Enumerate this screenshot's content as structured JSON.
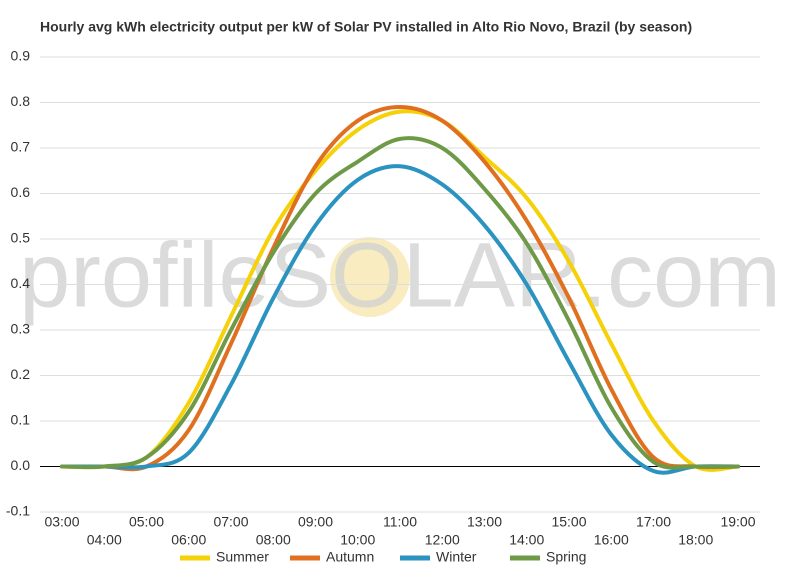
{
  "chart_data": {
    "type": "line",
    "title": "Hourly avg kWh electricity output per kW of Solar PV installed in Alto Rio Novo, Brazil (by season)",
    "watermark": "profileSOLAR.com",
    "categories": [
      "03:00",
      "04:00",
      "05:00",
      "06:00",
      "07:00",
      "08:00",
      "09:00",
      "10:00",
      "11:00",
      "12:00",
      "13:00",
      "14:00",
      "15:00",
      "16:00",
      "17:00",
      "18:00",
      "19:00"
    ],
    "series": [
      {
        "name": "Summer",
        "color": "#f5d10a",
        "values": [
          0,
          0,
          0.02,
          0.14,
          0.33,
          0.52,
          0.65,
          0.74,
          0.78,
          0.76,
          0.68,
          0.59,
          0.45,
          0.27,
          0.1,
          0,
          0
        ]
      },
      {
        "name": "Autumn",
        "color": "#e07020",
        "values": [
          0,
          0,
          0,
          0.08,
          0.27,
          0.48,
          0.66,
          0.76,
          0.79,
          0.76,
          0.67,
          0.54,
          0.37,
          0.17,
          0.02,
          0,
          0
        ]
      },
      {
        "name": "Winter",
        "color": "#2a93c0",
        "values": [
          0,
          0,
          0,
          0.03,
          0.18,
          0.37,
          0.53,
          0.63,
          0.66,
          0.62,
          0.53,
          0.4,
          0.23,
          0.07,
          -0.01,
          0,
          0
        ]
      },
      {
        "name": "Spring",
        "color": "#6e9a48",
        "values": [
          0,
          0,
          0.02,
          0.12,
          0.3,
          0.47,
          0.6,
          0.67,
          0.72,
          0.7,
          0.61,
          0.49,
          0.32,
          0.13,
          0.01,
          0,
          0
        ]
      }
    ],
    "ylim": [
      -0.1,
      0.9
    ],
    "yticks": [
      {
        "value": -0.1,
        "label": "-0.1"
      },
      {
        "value": 0,
        "label": "0.0"
      },
      0.1,
      0.2,
      0.3,
      0.4,
      0.5,
      0.6,
      0.7,
      0.8,
      0.9
    ],
    "grid": true,
    "legend": "bottom"
  }
}
